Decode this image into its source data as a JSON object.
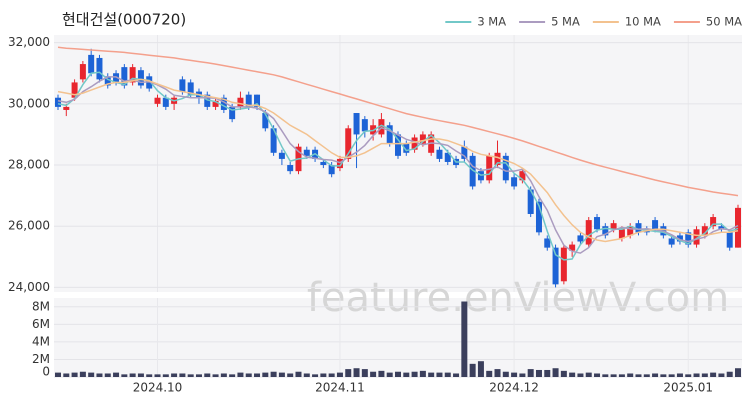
{
  "watermark": "feature.enViewV.com",
  "chart_data": [
    {
      "type": "candlestick",
      "title": "현대건설(000720)",
      "up_color": "#e8262e",
      "down_color": "#1d63d6",
      "open": [
        30200,
        29800,
        30200,
        30800,
        31600,
        31500,
        30900,
        31000,
        31200,
        30700,
        31100,
        30900,
        30000,
        30200,
        30000,
        30800,
        30700,
        30400,
        30300,
        29900,
        30200,
        29900,
        29900,
        30300,
        30300,
        29700,
        29200,
        28400,
        28000,
        27800,
        28500,
        28500,
        28100,
        28000,
        27900,
        28200,
        29700,
        29500,
        29000,
        29000,
        29300,
        29000,
        28700,
        28500,
        28700,
        28400,
        28500,
        28400,
        28200,
        28600,
        28300,
        27800,
        27500,
        28000,
        28300,
        27600,
        27500,
        27200,
        26800,
        25600,
        25300,
        24200,
        25200,
        25700,
        25400,
        26300,
        26000,
        25900,
        25600,
        25700,
        26100,
        25900,
        26200,
        26000,
        25600,
        25700,
        25800,
        25400,
        25700,
        26000,
        26000,
        25800,
        25300
      ],
      "high": [
        30300,
        30000,
        30800,
        31400,
        31800,
        31600,
        31000,
        31100,
        31300,
        31300,
        31200,
        31000,
        30300,
        30300,
        30300,
        30900,
        30800,
        30500,
        30400,
        30200,
        30300,
        30000,
        30400,
        30400,
        30300,
        29800,
        29300,
        28500,
        28100,
        28700,
        28600,
        28600,
        28200,
        28100,
        28300,
        29300,
        29700,
        29600,
        29500,
        29700,
        29400,
        29100,
        28800,
        29000,
        29100,
        29100,
        28600,
        28500,
        28300,
        28800,
        28400,
        27900,
        28400,
        28800,
        28400,
        27700,
        27900,
        27300,
        26900,
        25700,
        25400,
        25400,
        25500,
        25800,
        26300,
        26400,
        26100,
        26200,
        26000,
        26100,
        26200,
        26000,
        26300,
        26100,
        25700,
        25800,
        25900,
        26000,
        26100,
        26400,
        26100,
        25900,
        26700
      ],
      "low": [
        29800,
        29600,
        30100,
        30700,
        30900,
        30700,
        30500,
        30600,
        30500,
        30600,
        30500,
        30400,
        29900,
        29800,
        29800,
        30300,
        30200,
        30000,
        29800,
        29800,
        29700,
        29400,
        29800,
        29800,
        29800,
        29100,
        28300,
        28000,
        27700,
        27700,
        28200,
        28100,
        27900,
        27600,
        27800,
        28100,
        27900,
        28900,
        28800,
        28900,
        28600,
        28200,
        28300,
        28400,
        28600,
        28300,
        28100,
        28000,
        27900,
        28100,
        27200,
        27400,
        27400,
        27900,
        27400,
        27200,
        27400,
        26300,
        25700,
        25200,
        24000,
        24100,
        25000,
        25400,
        25300,
        25800,
        25600,
        25800,
        25500,
        25600,
        25700,
        25700,
        25800,
        25600,
        25300,
        25400,
        25300,
        25300,
        25600,
        25900,
        25800,
        25200,
        25300
      ],
      "close": [
        29900,
        29900,
        30700,
        31300,
        31000,
        30800,
        30600,
        30700,
        30600,
        31200,
        30600,
        30500,
        30200,
        29900,
        30200,
        30400,
        30300,
        30200,
        29900,
        30100,
        29800,
        29500,
        30200,
        29900,
        29900,
        29200,
        28400,
        28200,
        27800,
        28600,
        28300,
        28200,
        28000,
        27700,
        28200,
        29200,
        29000,
        29100,
        29300,
        29500,
        28700,
        28300,
        28400,
        28900,
        29000,
        29000,
        28200,
        28100,
        28000,
        28200,
        27300,
        27500,
        28300,
        28400,
        27500,
        27300,
        27800,
        26400,
        25800,
        25300,
        24100,
        25300,
        25400,
        25500,
        26200,
        25900,
        25700,
        26100,
        25900,
        26000,
        25800,
        25800,
        25900,
        25700,
        25400,
        25500,
        25400,
        25900,
        26000,
        26300,
        25900,
        25300,
        26600
      ],
      "series": [
        {
          "name": "3 MA",
          "color": "#72c8c8",
          "values": [
            30000,
            29950,
            30170,
            30630,
            31000,
            31030,
            30800,
            30700,
            30630,
            30830,
            30800,
            30770,
            30430,
            30200,
            30100,
            30170,
            30300,
            30300,
            30130,
            30070,
            29930,
            29800,
            29830,
            29870,
            30000,
            29670,
            29170,
            28600,
            28130,
            28200,
            28230,
            28370,
            28170,
            27970,
            27970,
            28370,
            28800,
            29100,
            29130,
            29300,
            29170,
            28830,
            28470,
            28530,
            28770,
            28970,
            28730,
            28430,
            28100,
            28100,
            27830,
            27670,
            27700,
            28070,
            28070,
            27730,
            27530,
            27170,
            26670,
            25830,
            25070,
            24900,
            24930,
            25400,
            25700,
            25870,
            25930,
            25900,
            25900,
            26000,
            25900,
            25870,
            25830,
            25800,
            25670,
            25530,
            25430,
            25600,
            25770,
            26070,
            26070,
            25830,
            25930
          ]
        },
        {
          "name": "5 MA",
          "color": "#ab9cc0",
          "values": [
            30100,
            30050,
            30150,
            30400,
            30560,
            30740,
            30880,
            30880,
            30740,
            30780,
            30700,
            30720,
            30620,
            30480,
            30280,
            30240,
            30200,
            30200,
            30200,
            30180,
            30060,
            29900,
            29900,
            29900,
            29860,
            29740,
            29520,
            29120,
            28700,
            28440,
            28260,
            28220,
            28180,
            28160,
            28080,
            28260,
            28420,
            28640,
            28960,
            29220,
            29120,
            28980,
            28840,
            28760,
            28660,
            28720,
            28700,
            28640,
            28460,
            28300,
            27960,
            27820,
            27860,
            27940,
            27800,
            27800,
            27860,
            27480,
            26960,
            26520,
            25880,
            25380,
            25180,
            25120,
            25300,
            25660,
            25740,
            25880,
            25960,
            25920,
            25900,
            25920,
            25880,
            25840,
            25720,
            25560,
            25500,
            25580,
            25640,
            25820,
            25920,
            25880,
            26020
          ]
        },
        {
          "name": "10 MA",
          "color": "#f3c28f",
          "values": [
            30400,
            30350,
            30300,
            30350,
            30450,
            30550,
            30650,
            30700,
            30700,
            30750,
            30800,
            30750,
            30650,
            30550,
            30450,
            30400,
            30350,
            30300,
            30250,
            30200,
            30150,
            30050,
            30000,
            29950,
            29950,
            29850,
            29700,
            29500,
            29300,
            29150,
            29000,
            28800,
            28600,
            28400,
            28250,
            28250,
            28300,
            28400,
            28550,
            28700,
            28700,
            28700,
            28700,
            28750,
            28800,
            28850,
            28850,
            28800,
            28700,
            28600,
            28450,
            28350,
            28300,
            28250,
            28150,
            28050,
            27900,
            27700,
            27400,
            27100,
            26700,
            26350,
            26050,
            25800,
            25650,
            25550,
            25500,
            25550,
            25600,
            25700,
            25800,
            25850,
            25900,
            25900,
            25850,
            25800,
            25750,
            25700,
            25700,
            25750,
            25800,
            25800,
            25850
          ]
        },
        {
          "name": "50 MA",
          "color": "#f4a08c",
          "values": [
            31850,
            31820,
            31800,
            31780,
            31760,
            31740,
            31720,
            31700,
            31680,
            31650,
            31620,
            31590,
            31560,
            31530,
            31500,
            31460,
            31420,
            31380,
            31340,
            31300,
            31250,
            31200,
            31150,
            31100,
            31050,
            31000,
            30950,
            30880,
            30800,
            30720,
            30640,
            30560,
            30480,
            30400,
            30320,
            30240,
            30160,
            30080,
            30000,
            29920,
            29840,
            29760,
            29680,
            29620,
            29560,
            29500,
            29450,
            29400,
            29350,
            29300,
            29230,
            29160,
            29090,
            29020,
            28950,
            28870,
            28790,
            28700,
            28610,
            28520,
            28430,
            28340,
            28250,
            28160,
            28080,
            28000,
            27930,
            27860,
            27790,
            27720,
            27650,
            27580,
            27510,
            27450,
            27390,
            27330,
            27270,
            27220,
            27170,
            27120,
            27080,
            27040,
            27000
          ]
        }
      ],
      "ylim": [
        23850,
        32250
      ],
      "yticks": [
        {
          "value": 24000,
          "label": "24,000"
        },
        {
          "value": 26000,
          "label": "26,000"
        },
        {
          "value": 28000,
          "label": "28,000"
        },
        {
          "value": 30000,
          "label": "30,000"
        },
        {
          "value": 32000,
          "label": "32,000"
        }
      ],
      "grid": true,
      "legend": "top-right"
    },
    {
      "type": "bar",
      "color": "#3b3f5c",
      "categories": [
        null,
        null,
        null,
        null,
        null,
        null,
        null,
        null,
        null,
        null,
        null,
        null,
        "2024.10",
        null,
        null,
        null,
        null,
        null,
        null,
        null,
        null,
        null,
        null,
        null,
        null,
        null,
        null,
        null,
        null,
        null,
        null,
        null,
        null,
        null,
        "2024.11",
        null,
        null,
        null,
        null,
        null,
        null,
        null,
        null,
        null,
        null,
        null,
        null,
        null,
        null,
        null,
        null,
        null,
        null,
        null,
        null,
        "2024.12",
        null,
        null,
        null,
        null,
        null,
        null,
        null,
        null,
        null,
        null,
        null,
        null,
        null,
        null,
        null,
        null,
        null,
        null,
        null,
        null,
        "2025.01",
        null,
        null,
        null,
        null,
        null,
        null
      ],
      "values": [
        500000,
        400000,
        500000,
        600000,
        500000,
        400000,
        400000,
        500000,
        300000,
        400000,
        400000,
        300000,
        300000,
        300000,
        400000,
        400000,
        300000,
        300000,
        400000,
        300000,
        400000,
        300000,
        500000,
        400000,
        400000,
        500000,
        600000,
        500000,
        400000,
        600000,
        400000,
        300000,
        400000,
        400000,
        500000,
        900000,
        1000000,
        900000,
        600000,
        700000,
        500000,
        600000,
        500000,
        600000,
        700000,
        500000,
        500000,
        500000,
        400000,
        8600000,
        1500000,
        1800000,
        700000,
        900000,
        600000,
        500000,
        400000,
        900000,
        800000,
        800000,
        1000000,
        700000,
        500000,
        400000,
        500000,
        400000,
        300000,
        300000,
        300000,
        400000,
        300000,
        300000,
        400000,
        300000,
        300000,
        400000,
        300000,
        400000,
        400000,
        500000,
        400000,
        600000,
        1000000
      ],
      "ylim": [
        0,
        9000000
      ],
      "yticks": [
        0,
        {
          "value": 2000000,
          "label": "2M"
        },
        {
          "value": 4000000,
          "label": "4M"
        },
        {
          "value": 6000000,
          "label": "6M"
        },
        {
          "value": 8000000,
          "label": "8M"
        }
      ],
      "grid": true
    }
  ]
}
